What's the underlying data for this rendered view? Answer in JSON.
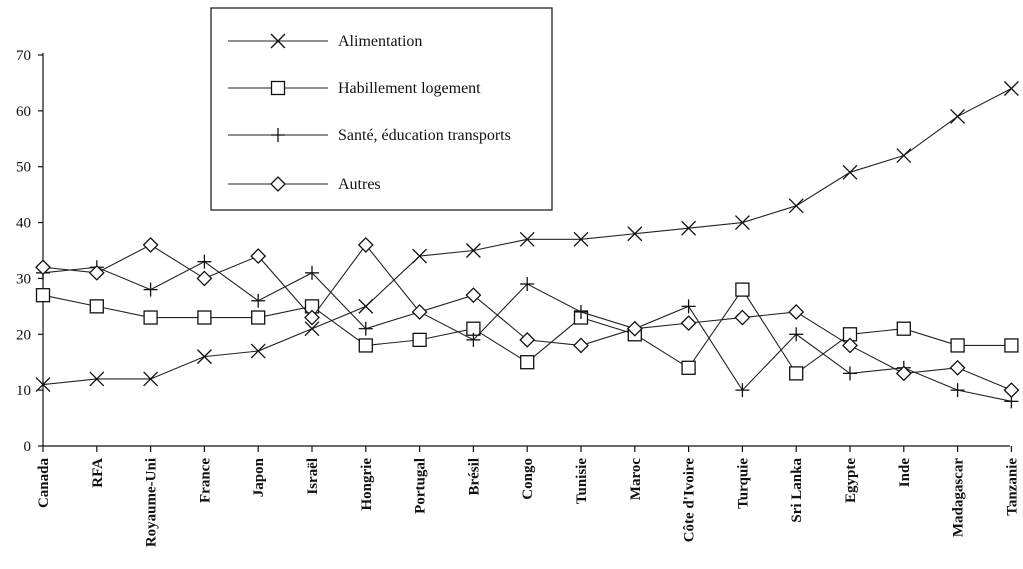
{
  "chart_data": {
    "type": "line",
    "title": "",
    "xlabel": "",
    "ylabel": "",
    "ylim": [
      0,
      70
    ],
    "yticks": [
      0,
      10,
      20,
      30,
      40,
      50,
      60,
      70
    ],
    "grid": false,
    "legend_position": "top-center",
    "categories": [
      "Canada",
      "RFA",
      "Royaume-Uni",
      "France",
      "Japon",
      "Israël",
      "Hongrie",
      "Portugal",
      "Brésil",
      "Congo",
      "Tunisie",
      "Maroc",
      "Côte d'Ivoire",
      "Turquie",
      "Sri Lanka",
      "Egypte",
      "Inde",
      "Madagascar",
      "Tanzanie"
    ],
    "series": [
      {
        "name": "Alimentation",
        "marker": "x",
        "values": [
          11,
          12,
          12,
          16,
          17,
          21,
          25,
          34,
          35,
          37,
          37,
          38,
          39,
          40,
          43,
          49,
          52,
          59,
          64
        ]
      },
      {
        "name": "Habillement logement",
        "marker": "square",
        "values": [
          27,
          25,
          23,
          23,
          23,
          25,
          18,
          19,
          21,
          15,
          23,
          20,
          14,
          28,
          13,
          20,
          21,
          18,
          18
        ]
      },
      {
        "name": "Santé, éducation transports",
        "marker": "plus",
        "values": [
          31,
          32,
          28,
          33,
          26,
          31,
          21,
          24,
          19,
          29,
          24,
          21,
          25,
          10,
          20,
          13,
          14,
          10,
          8
        ]
      },
      {
        "name": "Autres",
        "marker": "diamond",
        "values": [
          32,
          31,
          36,
          30,
          34,
          23,
          36,
          24,
          27,
          19,
          18,
          21,
          22,
          23,
          24,
          18,
          13,
          14,
          10
        ]
      }
    ]
  }
}
